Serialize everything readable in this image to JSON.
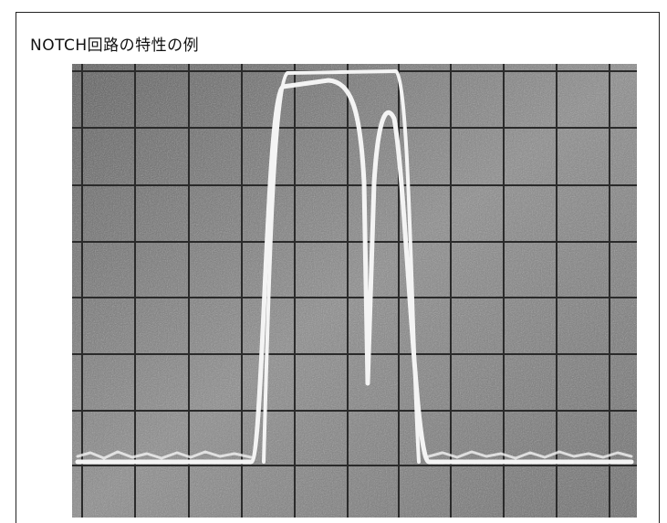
{
  "figure": {
    "title": "NOTCH回路の特性の例"
  }
}
